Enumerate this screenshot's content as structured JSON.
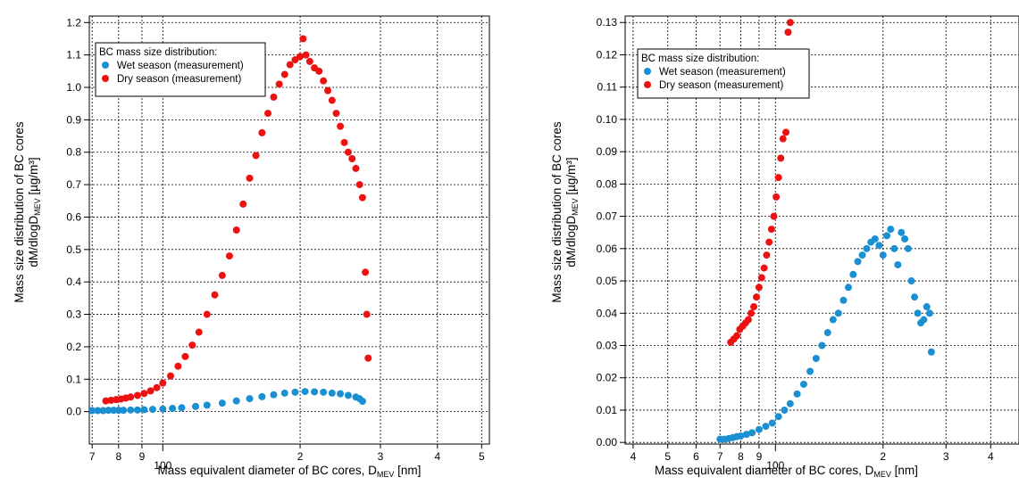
{
  "chart_data": [
    {
      "type": "scatter",
      "xscale": "log",
      "xlim": [
        69,
        520
      ],
      "ylim": [
        -0.1,
        1.22
      ],
      "x_major_ticks": [
        100
      ],
      "x_minor_ticks": [
        7,
        8,
        9,
        2,
        3,
        4,
        5
      ],
      "x_tick_labels": [
        "7",
        "8",
        "9",
        "100",
        "2",
        "3",
        "4",
        "5"
      ],
      "y_ticks": [
        0.0,
        0.1,
        0.2,
        0.3,
        0.4,
        0.5,
        0.6,
        0.7,
        0.8,
        0.9,
        1.0,
        1.1,
        1.2
      ],
      "y_tick_labels": [
        "0.0",
        "0.1",
        "0.2",
        "0.3",
        "0.4",
        "0.5",
        "0.6",
        "0.7",
        "0.8",
        "0.9",
        "1.0",
        "1.1",
        "1.2"
      ],
      "grid": true,
      "xlabel": "Mass equivalent diameter of BC cores, D",
      "xlabel_sub": "MEV",
      "xlabel_unit": " [nm]",
      "ylabel_line1": "Mass size distribution of BC cores",
      "ylabel_line2_pre": "dM/dlogD",
      "ylabel_line2_sub": "MEV",
      "ylabel_line2_unit": " [µg/m³]",
      "legend_title": "BC mass size distribution:",
      "legend_position": "top-left",
      "series": [
        {
          "name": "Wet season (measurement)",
          "color": "#1a8fd1",
          "x": [
            70,
            72,
            74,
            76,
            78,
            80,
            82,
            85,
            88,
            91,
            95,
            100,
            105,
            110,
            118,
            125,
            135,
            145,
            155,
            165,
            175,
            185,
            195,
            205,
            215,
            225,
            235,
            245,
            255,
            265,
            270,
            274
          ],
          "y": [
            0.003,
            0.003,
            0.003,
            0.004,
            0.004,
            0.004,
            0.004,
            0.005,
            0.005,
            0.006,
            0.007,
            0.008,
            0.01,
            0.012,
            0.016,
            0.02,
            0.026,
            0.033,
            0.04,
            0.046,
            0.052,
            0.057,
            0.06,
            0.062,
            0.061,
            0.06,
            0.057,
            0.055,
            0.05,
            0.045,
            0.04,
            0.032
          ]
        },
        {
          "name": "Dry season (measurement)",
          "color": "#ee1111",
          "x": [
            75,
            77,
            79,
            81,
            83,
            85,
            88,
            91,
            94,
            97,
            100,
            104,
            108,
            112,
            116,
            120,
            125,
            130,
            135,
            140,
            145,
            150,
            155,
            160,
            165,
            170,
            175,
            180,
            185,
            190,
            195,
            200,
            203,
            206,
            210,
            215,
            220,
            225,
            230,
            235,
            240,
            245,
            250,
            255,
            260,
            265,
            270,
            274,
            278,
            280,
            282
          ],
          "y": [
            0.033,
            0.035,
            0.037,
            0.039,
            0.042,
            0.045,
            0.05,
            0.056,
            0.064,
            0.074,
            0.088,
            0.11,
            0.14,
            0.17,
            0.205,
            0.245,
            0.3,
            0.36,
            0.42,
            0.48,
            0.56,
            0.64,
            0.72,
            0.79,
            0.86,
            0.92,
            0.97,
            1.01,
            1.04,
            1.07,
            1.085,
            1.095,
            1.15,
            1.1,
            1.08,
            1.06,
            1.05,
            1.02,
            0.99,
            0.96,
            0.92,
            0.88,
            0.83,
            0.8,
            0.78,
            0.75,
            0.7,
            0.66,
            0.43,
            0.3,
            0.165
          ]
        }
      ]
    },
    {
      "type": "scatter",
      "xscale": "log",
      "xlim": [
        38,
        480
      ],
      "ylim": [
        -0.0005,
        0.132
      ],
      "x_major_ticks": [
        100
      ],
      "x_minor_ticks": [
        4,
        5,
        6,
        7,
        8,
        9,
        2,
        3,
        4
      ],
      "x_tick_labels": [
        "4",
        "5",
        "6",
        "7",
        "8",
        "9",
        "100",
        "2",
        "3",
        "4"
      ],
      "y_ticks": [
        0.0,
        0.01,
        0.02,
        0.03,
        0.04,
        0.05,
        0.06,
        0.07,
        0.08,
        0.09,
        0.1,
        0.11,
        0.12,
        0.13
      ],
      "y_tick_labels": [
        "0.00",
        "0.01",
        "0.02",
        "0.03",
        "0.04",
        "0.05",
        "0.06",
        "0.07",
        "0.08",
        "0.09",
        "0.10",
        "0.11",
        "0.12",
        "0.13"
      ],
      "grid": true,
      "xlabel": "Mass equivalent diameter of BC cores, D",
      "xlabel_sub": "MEV",
      "xlabel_unit": " [nm]",
      "ylabel_line1": "Mass size distribution of BC cores",
      "ylabel_line2_pre": "dM/dlogD",
      "ylabel_line2_sub": "MEV",
      "ylabel_line2_unit": " [µg/m³]",
      "legend_title": "BC mass size distribution:",
      "legend_position": "top-left",
      "series": [
        {
          "name": "Wet season (measurement)",
          "color": "#1a8fd1",
          "x": [
            70,
            72,
            74,
            76,
            78,
            80,
            83,
            86,
            90,
            94,
            98,
            102,
            106,
            110,
            115,
            120,
            125,
            130,
            135,
            140,
            145,
            150,
            155,
            160,
            165,
            170,
            175,
            180,
            185,
            190,
            195,
            200,
            205,
            210,
            215,
            220,
            225,
            230,
            235,
            240,
            245,
            250,
            255,
            260,
            265,
            270,
            273
          ],
          "y": [
            0.001,
            0.001,
            0.0012,
            0.0015,
            0.0018,
            0.002,
            0.0025,
            0.003,
            0.004,
            0.005,
            0.006,
            0.008,
            0.01,
            0.012,
            0.015,
            0.018,
            0.022,
            0.026,
            0.03,
            0.034,
            0.038,
            0.04,
            0.044,
            0.048,
            0.052,
            0.056,
            0.058,
            0.06,
            0.062,
            0.063,
            0.061,
            0.058,
            0.064,
            0.066,
            0.06,
            0.055,
            0.065,
            0.063,
            0.06,
            0.05,
            0.045,
            0.04,
            0.037,
            0.038,
            0.042,
            0.04,
            0.028
          ]
        },
        {
          "name": "Dry season (measurement)",
          "color": "#ee1111",
          "x": [
            75,
            76.5,
            78,
            79.5,
            81,
            82.5,
            84,
            85.5,
            87,
            88.5,
            90,
            91.5,
            93,
            94.5,
            96,
            97.5,
            99,
            100.5,
            102,
            103.5,
            105,
            107,
            108.5,
            110
          ],
          "y": [
            0.031,
            0.032,
            0.033,
            0.035,
            0.036,
            0.037,
            0.038,
            0.04,
            0.042,
            0.045,
            0.048,
            0.051,
            0.054,
            0.058,
            0.062,
            0.066,
            0.07,
            0.076,
            0.082,
            0.088,
            0.094,
            0.096,
            0.127,
            0.13
          ]
        }
      ]
    }
  ]
}
